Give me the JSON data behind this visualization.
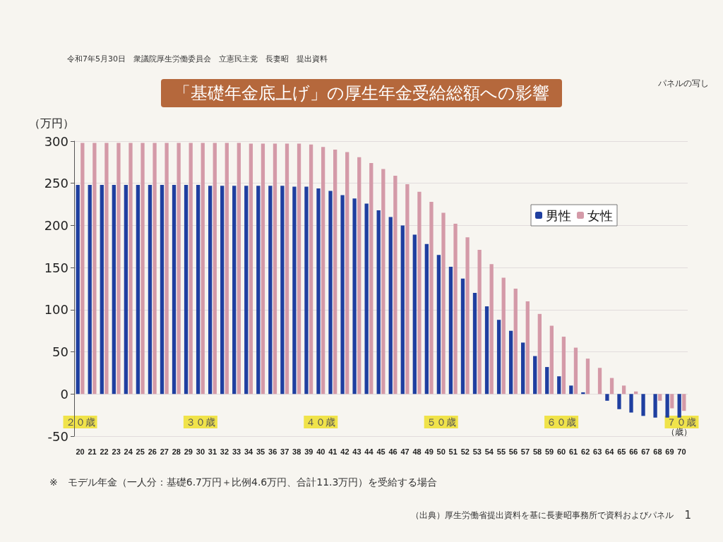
{
  "chart_data": {
    "type": "bar",
    "title": "「基礎年金底上げ」の厚生年金受給総額への影響",
    "categories": [
      "20",
      "21",
      "22",
      "23",
      "24",
      "25",
      "26",
      "27",
      "28",
      "29",
      "30",
      "31",
      "32",
      "33",
      "34",
      "35",
      "36",
      "37",
      "38",
      "39",
      "40",
      "41",
      "42",
      "43",
      "44",
      "45",
      "46",
      "47",
      "48",
      "49",
      "50",
      "51",
      "52",
      "53",
      "54",
      "55",
      "56",
      "57",
      "58",
      "59",
      "60",
      "61",
      "62",
      "63",
      "64",
      "65",
      "66",
      "67",
      "68",
      "69",
      "70"
    ],
    "series": [
      {
        "name": "男性",
        "color": "#1f3fa0",
        "values": [
          248,
          248,
          248,
          248,
          248,
          248,
          248,
          248,
          248,
          248,
          248,
          247,
          247,
          247,
          247,
          247,
          247,
          247,
          246,
          246,
          244,
          241,
          236,
          232,
          226,
          218,
          210,
          200,
          189,
          178,
          165,
          151,
          137,
          120,
          104,
          88,
          75,
          61,
          45,
          32,
          21,
          10,
          2,
          0,
          -8,
          -18,
          -22,
          -26,
          -28,
          -28,
          -28
        ]
      },
      {
        "name": "女性",
        "color": "#d49aa8",
        "values": [
          298,
          298,
          298,
          298,
          298,
          298,
          298,
          298,
          298,
          298,
          298,
          298,
          298,
          298,
          297,
          297,
          297,
          297,
          297,
          296,
          293,
          290,
          287,
          281,
          274,
          267,
          259,
          249,
          240,
          228,
          215,
          202,
          186,
          171,
          154,
          138,
          125,
          110,
          95,
          81,
          68,
          55,
          42,
          31,
          19,
          10,
          3,
          0,
          -8,
          -17,
          -20
        ]
      }
    ],
    "xlabel": "（歳）",
    "ylabel": "（万円）",
    "ylim": [
      -50,
      300
    ],
    "yticks": [
      -50,
      0,
      50,
      100,
      150,
      200,
      250,
      300
    ],
    "grid": "y",
    "legend": "top right",
    "annotations": [
      "令和7年5月30日　衆議院厚生労働委員会　立憲民主党　長妻昭　提出資料",
      "パネルの写し",
      "※　モデル年金（一人分：基礎6.7万円＋比例4.6万円、合計11.3万円）を受給する場合",
      "（出典）厚生労働省提出資料を基に長妻昭事務所で資料およびパネル",
      "1",
      "２０歳",
      "３０歳",
      "４０歳",
      "５０歳",
      "６０歳",
      "７０歳"
    ]
  }
}
